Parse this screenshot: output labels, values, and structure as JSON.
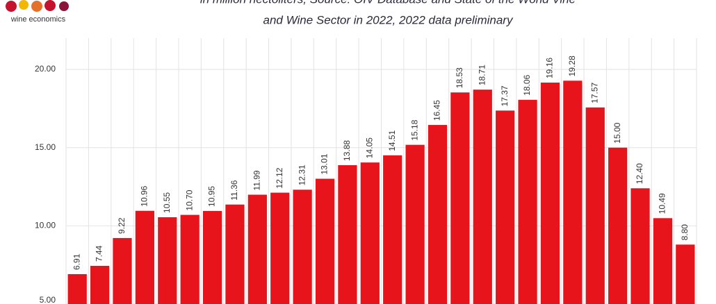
{
  "chart_data": {
    "type": "bar",
    "logo": "wine economics",
    "subtitle": [
      "in million hectoliters, Source: OIV Database and State of the World Vine",
      "and Wine Sector in 2022, 2022 data preliminary"
    ],
    "values": [
      6.91,
      7.44,
      9.22,
      10.96,
      10.55,
      10.7,
      10.95,
      11.36,
      11.99,
      12.12,
      12.31,
      13.01,
      13.88,
      14.05,
      14.51,
      15.18,
      16.45,
      18.53,
      18.71,
      17.37,
      18.06,
      19.16,
      19.28,
      17.57,
      15.0,
      12.4,
      10.49,
      8.8
    ],
    "value_labels": [
      "6.91",
      "7.44",
      "9.22",
      "10.96",
      "10.55",
      "10.70",
      "10.95",
      "11.36",
      "11.99",
      "12.12",
      "12.31",
      "13.01",
      "13.88",
      "14.05",
      "14.51",
      "15.18",
      "16.45",
      "18.53",
      "18.71",
      "17.37",
      "18.06",
      "19.16",
      "19.28",
      "17.57",
      "15.00",
      "12.40",
      "10.49",
      "8.80"
    ],
    "color": "#e8141b",
    "ylim": [
      5,
      22
    ],
    "yticks": [
      {
        "value": 5,
        "label": "5.00"
      },
      {
        "value": 10,
        "label": "10.00"
      },
      {
        "value": 15,
        "label": "15.00"
      },
      {
        "value": 20,
        "label": "20.00"
      }
    ],
    "grid": true
  }
}
